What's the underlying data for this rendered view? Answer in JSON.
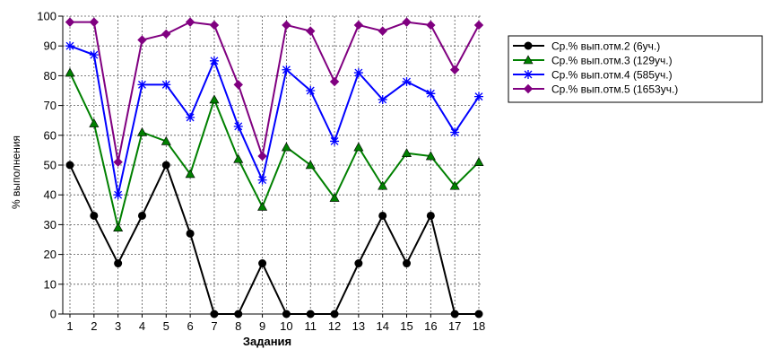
{
  "chart_data": {
    "type": "line",
    "xlabel": "Задания",
    "ylabel": "% выполнения",
    "ylim": [
      0,
      100
    ],
    "yticks": [
      0,
      10,
      20,
      30,
      40,
      50,
      60,
      70,
      80,
      90,
      100
    ],
    "categories": [
      "1",
      "2",
      "3",
      "4",
      "5",
      "6",
      "7",
      "8",
      "9",
      "10",
      "11",
      "12",
      "13",
      "14",
      "15",
      "16",
      "17",
      "18"
    ],
    "grid": true,
    "legend_position": "right",
    "series": [
      {
        "name": "Ср.% вып.отм.2 (6уч.)",
        "color": "#000000",
        "marker": "circle",
        "values": [
          50,
          33,
          17,
          33,
          50,
          27,
          0,
          0,
          17,
          0,
          0,
          0,
          17,
          33,
          17,
          33,
          0,
          0
        ]
      },
      {
        "name": "Ср.% вып.отм.3 (129уч.)",
        "color": "#008000",
        "marker": "triangle",
        "values": [
          81,
          64,
          29,
          61,
          58,
          47,
          72,
          52,
          36,
          56,
          50,
          39,
          56,
          43,
          54,
          53,
          43,
          51
        ]
      },
      {
        "name": "Ср.% вып.отм.4 (585уч.)",
        "color": "#0000ff",
        "marker": "star",
        "values": [
          90,
          87,
          40,
          77,
          77,
          66,
          85,
          63,
          45,
          82,
          75,
          58,
          81,
          72,
          78,
          74,
          61,
          73
        ]
      },
      {
        "name": "Ср.% вып.отм.5 (1653уч.)",
        "color": "#800080",
        "marker": "diamond",
        "values": [
          98,
          98,
          51,
          92,
          94,
          98,
          97,
          77,
          53,
          97,
          95,
          78,
          97,
          95,
          98,
          97,
          82,
          97
        ]
      }
    ]
  }
}
